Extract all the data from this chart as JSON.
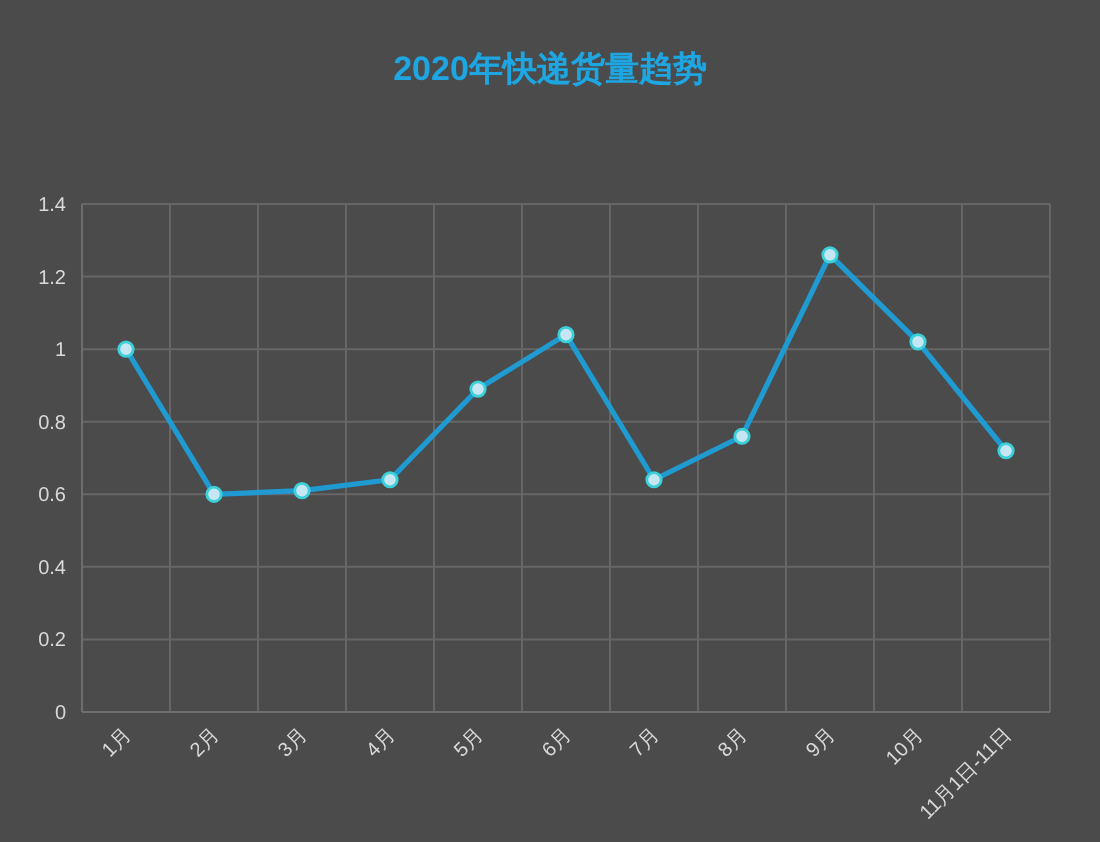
{
  "chart_data": {
    "type": "line",
    "title": "2020年快递货量趋势",
    "categories": [
      "1月",
      "2月",
      "3月",
      "4月",
      "5月",
      "6月",
      "7月",
      "8月",
      "9月",
      "10月",
      "11月1日-11日"
    ],
    "series": [
      {
        "color": "#1f9bd2",
        "values": [
          1.0,
          0.6,
          0.61,
          0.64,
          0.89,
          1.04,
          0.64,
          0.76,
          1.26,
          1.02,
          0.72
        ]
      }
    ],
    "ylim": [
      0,
      1.4
    ],
    "yticks": [
      0,
      0.2,
      0.4,
      0.6,
      0.8,
      1,
      1.2,
      1.4
    ],
    "grid": true,
    "marker": "circle",
    "line_style": "solid"
  }
}
